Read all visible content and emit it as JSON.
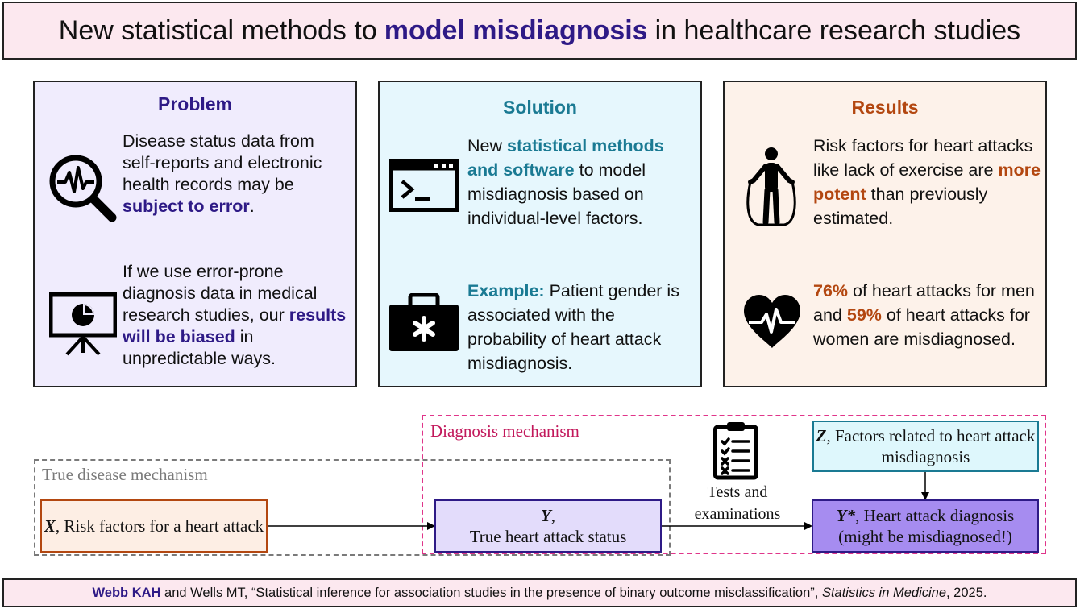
{
  "title": {
    "pre": "New statistical methods to",
    "accent": "model misdiagnosis",
    "post": "in healthcare research studies"
  },
  "problem": {
    "heading": "Problem",
    "p1_text": "Disease status data from self-reports and electronic health records may be",
    "p1_bold": "subject to error",
    "p1_end": ".",
    "p2_text": "If we use error-prone diagnosis data in medical research studies, our",
    "p2_bold": "results will be biased",
    "p2_end": "in unpredictable ways.",
    "icon1": "magnifier-heartbeat-icon",
    "icon2": "presentation-chart-icon"
  },
  "solution": {
    "heading": "Solution",
    "p1_pre": "New",
    "p1_bold": "statistical methods and software",
    "p1_end": "to model misdiagnosis based on individual-level factors.",
    "p2_bold": "Example:",
    "p2_end": "Patient gender is associated with the probability of heart attack misdiagnosis.",
    "icon1": "terminal-icon",
    "icon2": "medical-kit-icon"
  },
  "results": {
    "heading": "Results",
    "p1_text": "Risk factors for heart attacks like lack of exercise are",
    "p1_bold": "more potent",
    "p1_end": "than previously estimated.",
    "p2_bold1": "76%",
    "p2_mid": "of heart attacks for men and",
    "p2_bold2": "59%",
    "p2_end": "of heart attacks for women are misdiagnosed.",
    "icon1": "jump-rope-person-icon",
    "icon2": "heart-pulse-icon"
  },
  "diagram": {
    "true_mech_label": "True disease mechanism",
    "diag_mech_label": "Diagnosis mechanism",
    "x_var": "X",
    "x_text": ", Risk factors for a heart attack",
    "y_var": "Y",
    "y_text1": ",",
    "y_text2": "True heart attack status",
    "z_var": "Z",
    "z_text": ", Factors related to heart attack misdiagnosis",
    "ystar_var": "Y*",
    "ystar_text1": ", Heart attack diagnosis",
    "ystar_text2": "(might be misdiagnosed!)",
    "tests_label": "Tests and examinations",
    "clipboard_icon": "clipboard-checklist-icon"
  },
  "footer": {
    "authors_bold": "Webb KAH",
    "authors_rest": "and Wells MT, “Statistical inference for association studies in the presence of binary outcome misclassification”,",
    "journal": "Statistics in Medicine",
    "year": ", 2025."
  },
  "colors": {
    "title_bg": "#fce8ef",
    "accent_purple": "#2e1a86",
    "problem_bg": "#f0ecfd",
    "solution_bg": "#e6f7fd",
    "results_bg": "#fdf2ea",
    "teal": "#1a7a93",
    "orange": "#b34710",
    "x_box_bg": "#fdeee4",
    "y_box_bg": "#e3dcfb",
    "z_box_bg": "#def7fc",
    "ystar_box_bg": "#a68cf0",
    "diag_dash": "#e0358a"
  }
}
